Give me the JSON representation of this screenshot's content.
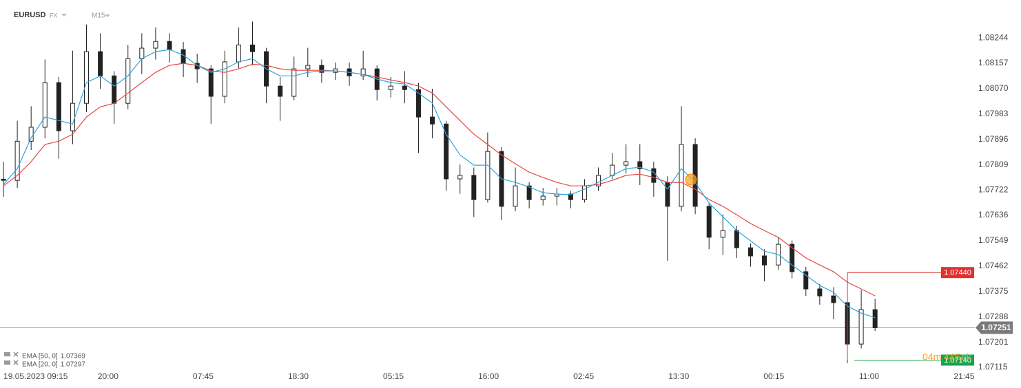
{
  "header": {
    "symbol": "EURUSD",
    "market": "FX",
    "timeframe": "M15"
  },
  "chart_data": {
    "type": "candlestick",
    "x": [
      0,
      8,
      16,
      24,
      32,
      40,
      48,
      56,
      64,
      72,
      80,
      88,
      96,
      104,
      112,
      120,
      128,
      136,
      144,
      152,
      160,
      168,
      176,
      184,
      192,
      200,
      208,
      216,
      224,
      232,
      240,
      248,
      256,
      264,
      272,
      280,
      288,
      296,
      304,
      312,
      320,
      328,
      336,
      344,
      352,
      360,
      368,
      376,
      384,
      392,
      400,
      408,
      416,
      424,
      432,
      440,
      448,
      456,
      464,
      472,
      480,
      488,
      496,
      504
    ],
    "open": [
      1.0776,
      1.07756,
      1.0789,
      1.07938,
      1.08091,
      1.07926,
      1.0802,
      1.08197,
      1.08114,
      1.0802,
      1.08173,
      1.08209,
      1.08232,
      1.08204,
      1.08157,
      1.08138,
      1.08044,
      1.08162,
      1.0822,
      1.08197,
      1.08079,
      1.08044,
      1.08138,
      1.0815,
      1.08126,
      1.08138,
      1.08114,
      1.08138,
      1.08067,
      1.08079,
      1.08067,
      1.07973,
      1.07949,
      1.07761,
      1.07773,
      1.0769,
      1.07855,
      1.07667,
      1.07737,
      1.0769,
      1.07702,
      1.07709,
      1.0769,
      1.07737,
      1.07773,
      1.07808,
      1.0782,
      1.07796,
      1.07749,
      1.07667,
      1.07879,
      1.07667,
      1.07561,
      1.07584,
      1.07525,
      1.07497,
      1.07466,
      1.07537,
      1.07443,
      1.07384,
      1.0736,
      1.07337,
      1.07195,
      1.07313
    ],
    "high": [
      1.0782,
      1.0796,
      1.0801,
      1.0817,
      1.0811,
      1.082,
      1.0829,
      1.0826,
      1.0813,
      1.0822,
      1.0826,
      1.0828,
      1.0826,
      1.0823,
      1.0819,
      1.0815,
      1.082,
      1.0828,
      1.083,
      1.0821,
      1.0811,
      1.0818,
      1.0821,
      1.0817,
      1.0816,
      1.0816,
      1.082,
      1.0815,
      1.0811,
      1.0813,
      1.0809,
      1.0807,
      1.0796,
      1.0781,
      1.078,
      1.0792,
      1.0787,
      1.078,
      1.0775,
      1.0773,
      1.0773,
      1.0772,
      1.0776,
      1.078,
      1.0785,
      1.0788,
      1.0788,
      1.0782,
      1.0777,
      1.0801,
      1.079,
      1.0768,
      1.0764,
      1.076,
      1.0754,
      1.0752,
      1.0756,
      1.0755,
      1.0746,
      1.074,
      1.0739,
      1.0744,
      1.0738,
      1.0735
    ],
    "low": [
      1.077,
      1.0773,
      1.0786,
      1.079,
      1.0783,
      1.0788,
      1.0799,
      1.0807,
      1.0795,
      1.08,
      1.0812,
      1.0817,
      1.0816,
      1.0811,
      1.0809,
      1.0795,
      1.0802,
      1.0814,
      1.0815,
      1.0802,
      1.0796,
      1.0803,
      1.0811,
      1.0809,
      1.081,
      1.0808,
      1.081,
      1.0803,
      1.0804,
      1.0802,
      1.0785,
      1.079,
      1.0772,
      1.0771,
      1.0763,
      1.0768,
      1.0762,
      1.0765,
      1.0766,
      1.0767,
      1.0767,
      1.0766,
      1.0768,
      1.0772,
      1.0776,
      1.0778,
      1.0774,
      1.077,
      1.0748,
      1.0765,
      1.0764,
      1.0752,
      1.075,
      1.0749,
      1.0746,
      1.0741,
      1.0745,
      1.0742,
      1.0736,
      1.0733,
      1.0728,
      1.0713,
      1.0718,
      1.0724
    ],
    "close": [
      1.07756,
      1.0789,
      1.07938,
      1.08091,
      1.07926,
      1.0802,
      1.08197,
      1.08114,
      1.0802,
      1.08173,
      1.08209,
      1.08232,
      1.08204,
      1.08157,
      1.08138,
      1.08044,
      1.08162,
      1.0822,
      1.08197,
      1.08079,
      1.08044,
      1.08138,
      1.0815,
      1.08126,
      1.08138,
      1.08114,
      1.08138,
      1.08067,
      1.08079,
      1.08067,
      1.07973,
      1.07949,
      1.07761,
      1.07773,
      1.0769,
      1.07855,
      1.07667,
      1.07737,
      1.0769,
      1.07702,
      1.07709,
      1.0769,
      1.07737,
      1.07773,
      1.07808,
      1.0782,
      1.07796,
      1.07749,
      1.07667,
      1.07879,
      1.07667,
      1.07561,
      1.07584,
      1.07525,
      1.07497,
      1.07466,
      1.07537,
      1.07443,
      1.07384,
      1.0736,
      1.07337,
      1.07195,
      1.07313,
      1.07251
    ],
    "up_color": "#ffffff",
    "down_color": "#222222",
    "series": [
      {
        "name": "EMA [50, 0]",
        "color": "#e5473f",
        "last": 1.07369,
        "values": [
          1.07737,
          1.07773,
          1.0782,
          1.07879,
          1.0789,
          1.07914,
          1.07973,
          1.08008,
          1.0802,
          1.08055,
          1.08091,
          1.08126,
          1.0815,
          1.08157,
          1.0815,
          1.08131,
          1.08126,
          1.08138,
          1.08154,
          1.0815,
          1.08138,
          1.08133,
          1.08133,
          1.08133,
          1.08131,
          1.08126,
          1.08119,
          1.0811,
          1.081,
          1.08091,
          1.08079,
          1.08055,
          1.08008,
          1.07961,
          1.07914,
          1.07879,
          1.07843,
          1.07813,
          1.07784,
          1.07766,
          1.07749,
          1.07737,
          1.07737,
          1.07742,
          1.07756,
          1.07773,
          1.07777,
          1.07766,
          1.07749,
          1.07749,
          1.07726,
          1.0769,
          1.07667,
          1.07638,
          1.07608,
          1.07584,
          1.07561,
          1.07525,
          1.0749,
          1.07466,
          1.07443,
          1.07407,
          1.07384,
          1.0736
        ]
      },
      {
        "name": "EMA [20, 0]",
        "color": "#2ba6de",
        "last": 1.07297,
        "values": [
          1.07742,
          1.07796,
          1.07902,
          1.07973,
          1.07961,
          1.07949,
          1.08091,
          1.08114,
          1.08079,
          1.08114,
          1.08173,
          1.08197,
          1.08204,
          1.08185,
          1.0815,
          1.08126,
          1.08138,
          1.08162,
          1.08173,
          1.08138,
          1.08114,
          1.08114,
          1.08126,
          1.08131,
          1.08131,
          1.08126,
          1.08119,
          1.08103,
          1.08091,
          1.08086,
          1.08055,
          1.0802,
          1.07914,
          1.07843,
          1.07808,
          1.07808,
          1.07761,
          1.07749,
          1.07733,
          1.07714,
          1.07709,
          1.07707,
          1.07726,
          1.07749,
          1.07773,
          1.07796,
          1.07801,
          1.07784,
          1.07726,
          1.07796,
          1.07749,
          1.07678,
          1.07631,
          1.07584,
          1.07549,
          1.07513,
          1.07502,
          1.07466,
          1.07431,
          1.07396,
          1.07372,
          1.07325,
          1.07301,
          1.07285
        ]
      }
    ],
    "xlim": [
      -2,
      560.5
    ],
    "ylim": [
      1.07101,
      1.08374
    ],
    "xticks": [
      {
        "value": 0,
        "label": "19.05.2023  09:15"
      },
      {
        "value": 60.5,
        "label": "20:00"
      },
      {
        "value": 115.5,
        "label": "07:45"
      },
      {
        "value": 170.5,
        "label": "18:30"
      },
      {
        "value": 225.5,
        "label": "05:15"
      },
      {
        "value": 280.5,
        "label": "16:00"
      },
      {
        "value": 335.5,
        "label": "02:45"
      },
      {
        "value": 390.5,
        "label": "13:30"
      },
      {
        "value": 445.5,
        "label": "00:15"
      },
      {
        "value": 500.5,
        "label": "11:00"
      },
      {
        "value": 555.5,
        "label": "21:45"
      }
    ],
    "yticks": [
      1.08244,
      1.08157,
      {
        "value": 1.0807,
        "label": "1.08070"
      },
      1.07983,
      1.07896,
      1.07809,
      1.07722,
      1.07636,
      1.07549,
      1.07462,
      1.07375,
      1.07288,
      1.07201,
      1.07115
    ],
    "grid": false,
    "last_price": 1.07251,
    "high_marker": {
      "value": 1.0744,
      "label": "1.07440",
      "color": "#e0312f"
    },
    "low_marker": {
      "value": 1.0714,
      "label": "1.07140",
      "color": "#17a34a"
    },
    "countdown": "04m 44Sek"
  }
}
